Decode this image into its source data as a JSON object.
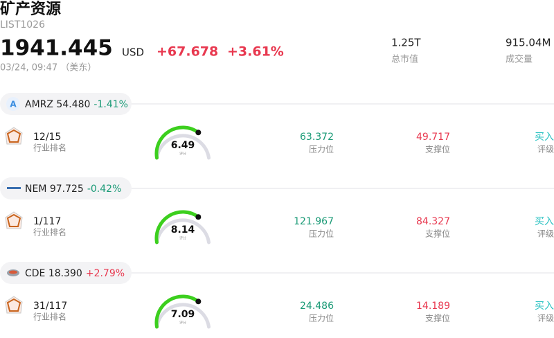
{
  "header": {
    "title": "矿产资源",
    "code": "LIST1026",
    "price": "1941.445",
    "currency": "USD",
    "change": "+67.678",
    "change_pct": "+3.61%",
    "time": "03/24, 09:47 （美东）"
  },
  "stats": [
    {
      "value": "1.25T",
      "label": "总市值"
    },
    {
      "value": "915.04M",
      "label": "成交量"
    }
  ],
  "stocks": [
    {
      "icon": "A",
      "name": "AMRZ 54.480",
      "change_pct": "-1.41%",
      "rank": "12/15",
      "rank_label": "行业排名",
      "score": "6.49",
      "score_label": "评分",
      "resistance": "63.372",
      "resistance_label": "压力位",
      "support": "49.717",
      "support_label": "支撑位",
      "rating": "买入",
      "rating_label": "评级"
    },
    {
      "name": "NEM 97.725",
      "change_pct": "-0.42%",
      "rank": "1/117",
      "rank_label": "行业排名",
      "score": "8.14",
      "score_label": "评分",
      "resistance": "121.967",
      "resistance_label": "压力位",
      "support": "84.327",
      "support_label": "支撑位",
      "rating": "买入",
      "rating_label": "评级"
    },
    {
      "name": "CDE 18.390",
      "change_pct": "+2.79%",
      "rank": "31/117",
      "rank_label": "行业排名",
      "score": "7.09",
      "score_label": "评分",
      "resistance": "24.486",
      "resistance_label": "压力位",
      "support": "14.189",
      "support_label": "支撑位",
      "rating": "买入",
      "rating_label": "评级"
    }
  ]
}
